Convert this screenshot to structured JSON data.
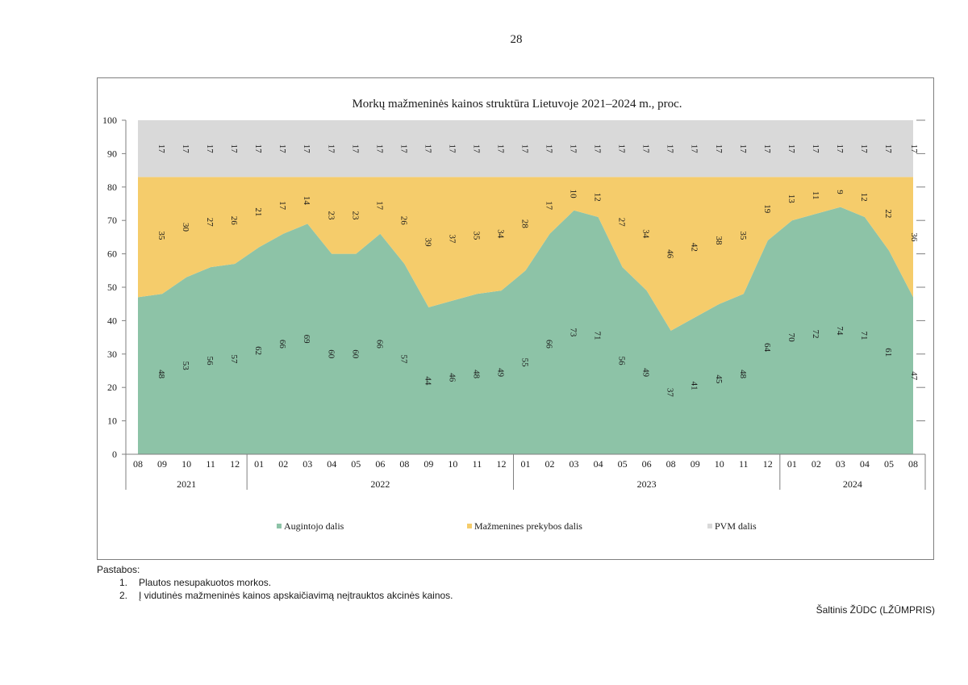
{
  "page": {
    "number": "28"
  },
  "chart_data": {
    "type": "area",
    "stacked": true,
    "title": "Morkų mažmeninės kainos struktūra Lietuvoje 2021–2024 m., proc.",
    "ylim": [
      0,
      100
    ],
    "yticks": [
      "0",
      "10",
      "20",
      "30",
      "40",
      "50",
      "60",
      "70",
      "80",
      "90",
      "100"
    ],
    "categories": [
      "08",
      "09",
      "10",
      "11",
      "12",
      "01",
      "02",
      "03",
      "04",
      "05",
      "06",
      "08",
      "09",
      "10",
      "11",
      "12",
      "01",
      "02",
      "03",
      "04",
      "05",
      "06",
      "08",
      "09",
      "10",
      "11",
      "12",
      "01",
      "02",
      "03",
      "04",
      "05",
      "08"
    ],
    "year_groups": [
      {
        "label": "2021",
        "count": 5
      },
      {
        "label": "2022",
        "count": 11
      },
      {
        "label": "2023",
        "count": 11
      },
      {
        "label": "2024",
        "count": 6
      }
    ],
    "series": [
      {
        "name": "Augintojo dalis",
        "color": "#8dc3a7",
        "values": [
          47,
          48,
          53,
          56,
          57,
          62,
          66,
          69,
          60,
          60,
          66,
          57,
          44,
          46,
          48,
          49,
          55,
          66,
          73,
          71,
          56,
          49,
          37,
          41,
          45,
          48,
          64,
          70,
          72,
          74,
          71,
          61,
          47
        ],
        "labels": [
          "",
          "48",
          "53",
          "56",
          "57",
          "62",
          "66",
          "69",
          "60",
          "60",
          "66",
          "57",
          "44",
          "46",
          "48",
          "49",
          "55",
          "66",
          "73",
          "71",
          "56",
          "49",
          "37",
          "41",
          "45",
          "48",
          "64",
          "70",
          "72",
          "74",
          "71",
          "61",
          "47"
        ]
      },
      {
        "name": "Mažmenines prekybos dalis",
        "color": "#f5cc6b",
        "values": [
          36,
          35,
          30,
          27,
          26,
          21,
          17,
          14,
          23,
          23,
          17,
          26,
          39,
          37,
          35,
          34,
          28,
          17,
          10,
          12,
          27,
          34,
          46,
          42,
          38,
          35,
          19,
          13,
          11,
          9,
          12,
          22,
          36
        ],
        "labels": [
          "",
          "35",
          "30",
          "27",
          "26",
          "21",
          "17",
          "14",
          "23",
          "23",
          "17",
          "26",
          "39",
          "37",
          "35",
          "34",
          "28",
          "17",
          "10",
          "12",
          "27",
          "34",
          "46",
          "42",
          "38",
          "35",
          "19",
          "13",
          "11",
          "9",
          "12",
          "22",
          "36"
        ]
      },
      {
        "name": "PVM dalis",
        "color": "#d9d9d9",
        "values": [
          17,
          17,
          17,
          17,
          17,
          17,
          17,
          17,
          17,
          17,
          17,
          17,
          17,
          17,
          17,
          17,
          17,
          17,
          17,
          17,
          17,
          17,
          17,
          17,
          17,
          17,
          17,
          17,
          17,
          17,
          17,
          17,
          17
        ],
        "labels": [
          "",
          "17",
          "17",
          "17",
          "17",
          "17",
          "17",
          "17",
          "17",
          "17",
          "17",
          "17",
          "17",
          "17",
          "17",
          "17",
          "17",
          "17",
          "17",
          "17",
          "17",
          "17",
          "17",
          "17",
          "17",
          "17",
          "17",
          "17",
          "17",
          "17",
          "17",
          "17",
          "17"
        ]
      }
    ],
    "legend_position": "bottom"
  },
  "notes": {
    "heading": "Pastabos:",
    "items": [
      {
        "num": "1.",
        "text": "Plautos nesupakuotos morkos."
      },
      {
        "num": "2.",
        "text": "Į vidutinės mažmeninės kainos apskaičiavimą neįtrauktos akcinės kainos."
      }
    ]
  },
  "source": "Šaltinis ŽŪDC (LŽŪMPRIS)"
}
